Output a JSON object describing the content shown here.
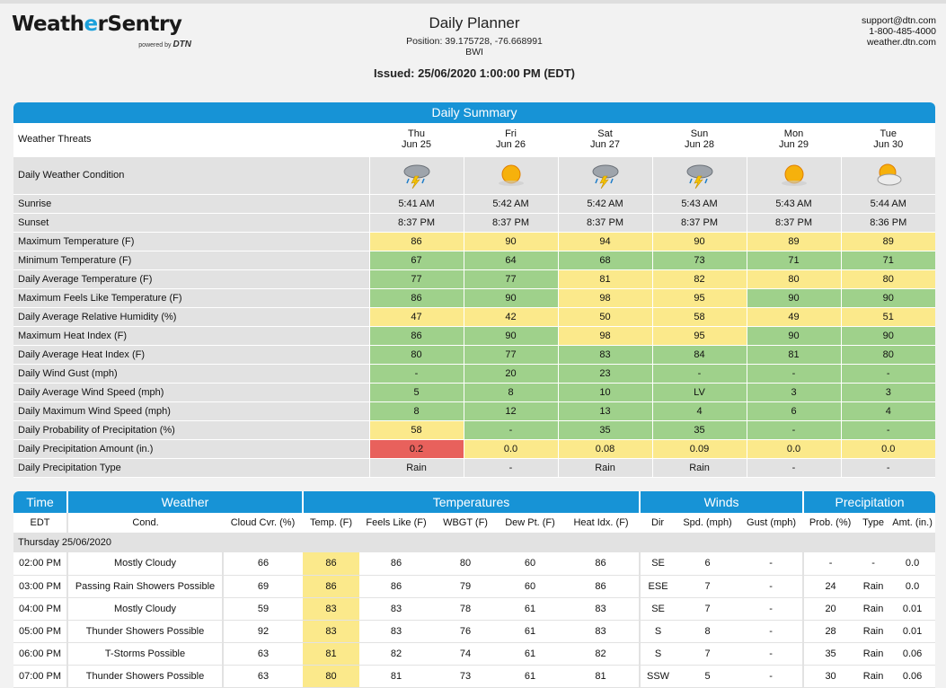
{
  "brand": {
    "name_a": "Weath",
    "name_b": "e",
    "name_c": "rSentry",
    "powered_label": "powered by",
    "powered_brand": "DTN",
    "accent_color": "#1ba0db"
  },
  "header": {
    "title": "Daily Planner",
    "position": "Position: 39.175728, -76.668991",
    "site": "BWI",
    "issued": "Issued: 25/06/2020 1:00:00 PM (EDT)"
  },
  "contact": {
    "email": "support@dtn.com",
    "phone": "1-800-485-4000",
    "web": "weather.dtn.com"
  },
  "summary": {
    "title": "Daily Summary",
    "threats_label": "Weather Threats",
    "days": [
      {
        "dow": "Thu",
        "date": "Jun 25",
        "icon": "thunderstorm-icon"
      },
      {
        "dow": "Fri",
        "date": "Jun 26",
        "icon": "sunny-icon"
      },
      {
        "dow": "Sat",
        "date": "Jun 27",
        "icon": "thunderstorm-icon"
      },
      {
        "dow": "Sun",
        "date": "Jun 28",
        "icon": "thunderstorm-icon"
      },
      {
        "dow": "Mon",
        "date": "Jun 29",
        "icon": "sunny-icon"
      },
      {
        "dow": "Tue",
        "date": "Jun 30",
        "icon": "partly-cloudy-icon"
      }
    ],
    "condition_label": "Daily Weather Condition",
    "rows": [
      {
        "label": "Sunrise",
        "values": [
          "5:41 AM",
          "5:42 AM",
          "5:42 AM",
          "5:43 AM",
          "5:43 AM",
          "5:44 AM"
        ],
        "colors": [
          "n",
          "n",
          "n",
          "n",
          "n",
          "n"
        ]
      },
      {
        "label": "Sunset",
        "values": [
          "8:37 PM",
          "8:37 PM",
          "8:37 PM",
          "8:37 PM",
          "8:37 PM",
          "8:36 PM"
        ],
        "colors": [
          "n",
          "n",
          "n",
          "n",
          "n",
          "n"
        ]
      },
      {
        "label": "Maximum Temperature (F)",
        "values": [
          "86",
          "90",
          "94",
          "90",
          "89",
          "89"
        ],
        "colors": [
          "y",
          "y",
          "y",
          "y",
          "y",
          "y"
        ]
      },
      {
        "label": "Minimum Temperature (F)",
        "values": [
          "67",
          "64",
          "68",
          "73",
          "71",
          "71"
        ],
        "colors": [
          "g",
          "g",
          "g",
          "g",
          "g",
          "g"
        ]
      },
      {
        "label": "Daily Average Temperature (F)",
        "values": [
          "77",
          "77",
          "81",
          "82",
          "80",
          "80"
        ],
        "colors": [
          "g",
          "g",
          "y",
          "y",
          "y",
          "y"
        ]
      },
      {
        "label": "Maximum Feels Like Temperature (F)",
        "values": [
          "86",
          "90",
          "98",
          "95",
          "90",
          "90"
        ],
        "colors": [
          "g",
          "g",
          "y",
          "y",
          "g",
          "g"
        ]
      },
      {
        "label": "Daily Average Relative Humidity (%)",
        "values": [
          "47",
          "42",
          "50",
          "58",
          "49",
          "51"
        ],
        "colors": [
          "y",
          "y",
          "y",
          "y",
          "y",
          "y"
        ]
      },
      {
        "label": "Maximum Heat Index (F)",
        "values": [
          "86",
          "90",
          "98",
          "95",
          "90",
          "90"
        ],
        "colors": [
          "g",
          "g",
          "y",
          "y",
          "g",
          "g"
        ]
      },
      {
        "label": "Daily Average Heat Index (F)",
        "values": [
          "80",
          "77",
          "83",
          "84",
          "81",
          "80"
        ],
        "colors": [
          "g",
          "g",
          "g",
          "g",
          "g",
          "g"
        ]
      },
      {
        "label": "Daily Wind Gust (mph)",
        "values": [
          "-",
          "20",
          "23",
          "-",
          "-",
          "-"
        ],
        "colors": [
          "g",
          "g",
          "g",
          "g",
          "g",
          "g"
        ]
      },
      {
        "label": "Daily Average Wind Speed (mph)",
        "values": [
          "5",
          "8",
          "10",
          "LV",
          "3",
          "3"
        ],
        "colors": [
          "g",
          "g",
          "g",
          "g",
          "g",
          "g"
        ]
      },
      {
        "label": "Daily Maximum Wind Speed (mph)",
        "values": [
          "8",
          "12",
          "13",
          "4",
          "6",
          "4"
        ],
        "colors": [
          "g",
          "g",
          "g",
          "g",
          "g",
          "g"
        ]
      },
      {
        "label": "Daily Probability of Precipitation (%)",
        "values": [
          "58",
          "-",
          "35",
          "35",
          "-",
          "-"
        ],
        "colors": [
          "y",
          "g",
          "g",
          "g",
          "g",
          "g"
        ]
      },
      {
        "label": "Daily Precipitation Amount (in.)",
        "values": [
          "0.2",
          "0.0",
          "0.08",
          "0.09",
          "0.0",
          "0.0"
        ],
        "colors": [
          "r",
          "y",
          "y",
          "y",
          "y",
          "y"
        ]
      },
      {
        "label": "Daily Precipitation Type",
        "values": [
          "Rain",
          "-",
          "Rain",
          "Rain",
          "-",
          "-"
        ],
        "colors": [
          "n",
          "n",
          "n",
          "n",
          "n",
          "n"
        ]
      }
    ]
  },
  "detail": {
    "sections": [
      "Time",
      "Weather",
      "Temperatures",
      "Winds",
      "Precipitation"
    ],
    "columns": [
      "EDT",
      "Cond.",
      "Cloud Cvr. (%)",
      "Temp. (F)",
      "Feels Like (F)",
      "WBGT (F)",
      "Dew Pt. (F)",
      "Heat Idx. (F)",
      "Dir",
      "Spd. (mph)",
      "Gust (mph)",
      "Prob. (%)",
      "Type",
      "Amt. (in.)"
    ],
    "day_label": "Thursday 25/06/2020",
    "rows": [
      [
        "02:00 PM",
        "Mostly Cloudy",
        "66",
        "86",
        "86",
        "80",
        "60",
        "86",
        "SE",
        "6",
        "-",
        "-",
        "-",
        "0.0"
      ],
      [
        "03:00 PM",
        "Passing Rain Showers Possible",
        "69",
        "86",
        "86",
        "79",
        "60",
        "86",
        "ESE",
        "7",
        "-",
        "24",
        "Rain",
        "0.0"
      ],
      [
        "04:00 PM",
        "Mostly Cloudy",
        "59",
        "83",
        "83",
        "78",
        "61",
        "83",
        "SE",
        "7",
        "-",
        "20",
        "Rain",
        "0.01"
      ],
      [
        "05:00 PM",
        "Thunder Showers Possible",
        "92",
        "83",
        "83",
        "76",
        "61",
        "83",
        "S",
        "8",
        "-",
        "28",
        "Rain",
        "0.01"
      ],
      [
        "06:00 PM",
        "T-Storms Possible",
        "63",
        "81",
        "82",
        "74",
        "61",
        "82",
        "S",
        "7",
        "-",
        "35",
        "Rain",
        "0.06"
      ],
      [
        "07:00 PM",
        "Thunder Showers Possible",
        "63",
        "80",
        "81",
        "73",
        "61",
        "81",
        "SSW",
        "5",
        "-",
        "30",
        "Rain",
        "0.06"
      ]
    ]
  },
  "colors": {
    "band": "#1793d6",
    "green": "#9fd18b",
    "yellow": "#fbe98b",
    "red": "#e8615c",
    "grey": "#e2e2e2"
  }
}
